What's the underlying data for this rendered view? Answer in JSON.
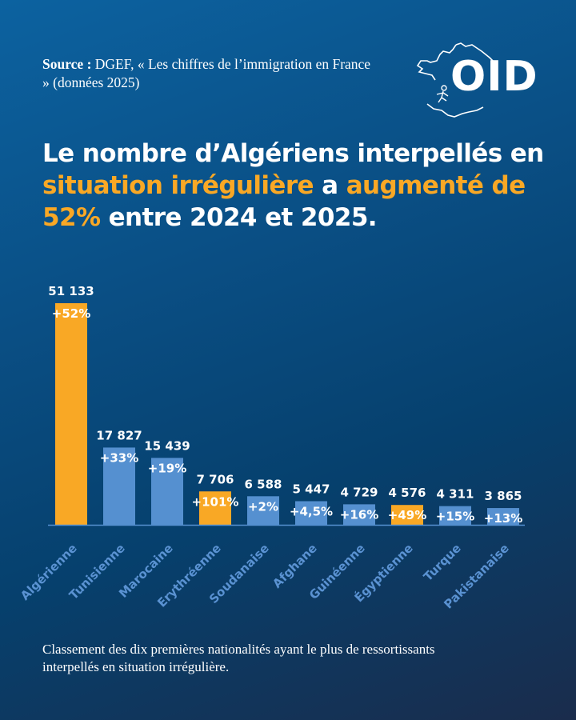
{
  "source": {
    "label": "Source :",
    "text": " DGEF, « Les chiffres de l’immigration en France » (données 2025)"
  },
  "logo": {
    "text": "OID"
  },
  "headline": {
    "part1": "Le nombre d’Algériens interpellés en ",
    "highlight1": "situation irrégulière",
    "part2": " a ",
    "highlight2": "augmenté de 52%",
    "part3": " entre 2024 et 2025."
  },
  "colors": {
    "highlight": "#f9a825",
    "bar_default": "#5590d0",
    "bar_highlight": "#f9a825",
    "category_label": "#5a92d2"
  },
  "chart_data": {
    "type": "bar",
    "title": "Le nombre d’Algériens interpellés en situation irrégulière a augmenté de 52% entre 2024 et 2025.",
    "xlabel": "",
    "ylabel": "",
    "ylim": [
      0,
      51133
    ],
    "grid": false,
    "categories": [
      "Algérienne",
      "Tunisienne",
      "Marocaine",
      "Erythréenne",
      "Soudanaise",
      "Afghane",
      "Guinéenne",
      "Égyptienne",
      "Turque",
      "Pakistanaise"
    ],
    "values": [
      51133,
      17827,
      15439,
      7706,
      6588,
      5447,
      4729,
      4576,
      4311,
      3865
    ],
    "value_labels": [
      "51 133",
      "17 827",
      "15 439",
      "7 706",
      "6 588",
      "5 447",
      "4 729",
      "4 576",
      "4 311",
      "3 865"
    ],
    "change_labels": [
      "+52%",
      "+33%",
      "+19%",
      "+101%",
      "+2%",
      "+4,5%",
      "+16%",
      "+49%",
      "+15%",
      "+13%"
    ],
    "highlighted": [
      true,
      false,
      false,
      true,
      false,
      false,
      false,
      true,
      false,
      false
    ]
  },
  "footnote": "Classement des dix premières nationalités ayant le plus de ressortissants interpellés en situation irrégulière."
}
